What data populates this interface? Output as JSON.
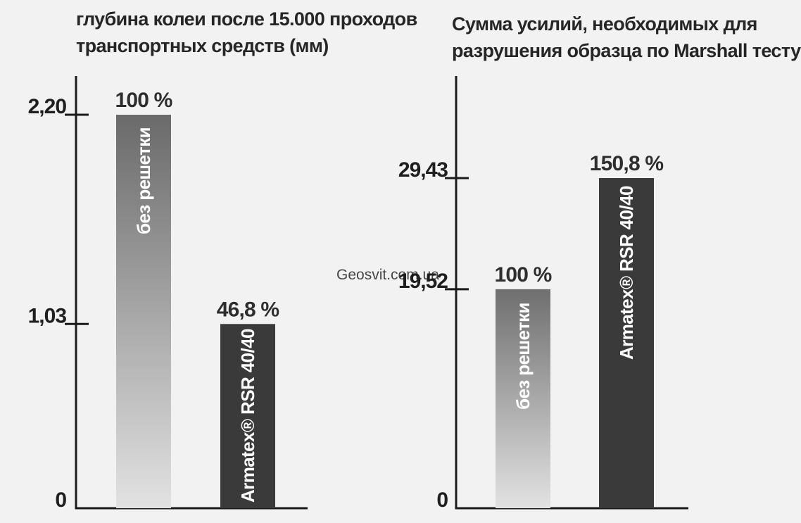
{
  "chart_data": [
    {
      "type": "bar",
      "title": "глубина колеи после 15.000 проходов\nтранспортных средств (мм)",
      "ylim": [
        0,
        2.2
      ],
      "yticks": [
        {
          "value": 0,
          "label": "0"
        },
        {
          "value": 1.03,
          "label": "1,03"
        },
        {
          "value": 2.2,
          "label": "2,20"
        }
      ],
      "categories": [
        "без решетки",
        "Armatex® RSR 40/40"
      ],
      "values": [
        2.2,
        1.03
      ],
      "data_labels": [
        "100 %",
        "46,8 %"
      ],
      "bar_colors": [
        "gradient",
        "#3a3a3a"
      ],
      "grid": false
    },
    {
      "type": "bar",
      "title": "Сумма усилий, необходимых для\nразрушения образца по Marshall тесту",
      "ylim": [
        0,
        29.43
      ],
      "yticks": [
        {
          "value": 0,
          "label": "0"
        },
        {
          "value": 19.52,
          "label": "19,52"
        },
        {
          "value": 29.43,
          "label": "29,43"
        }
      ],
      "categories": [
        "без решетки",
        "Armatex® RSR 40/40"
      ],
      "values": [
        19.52,
        29.43
      ],
      "data_labels": [
        "100 %",
        "150,8 %"
      ],
      "bar_colors": [
        "gradient",
        "#3a3a3a"
      ],
      "grid": false
    }
  ],
  "watermark": "Geosvit.com.ua"
}
